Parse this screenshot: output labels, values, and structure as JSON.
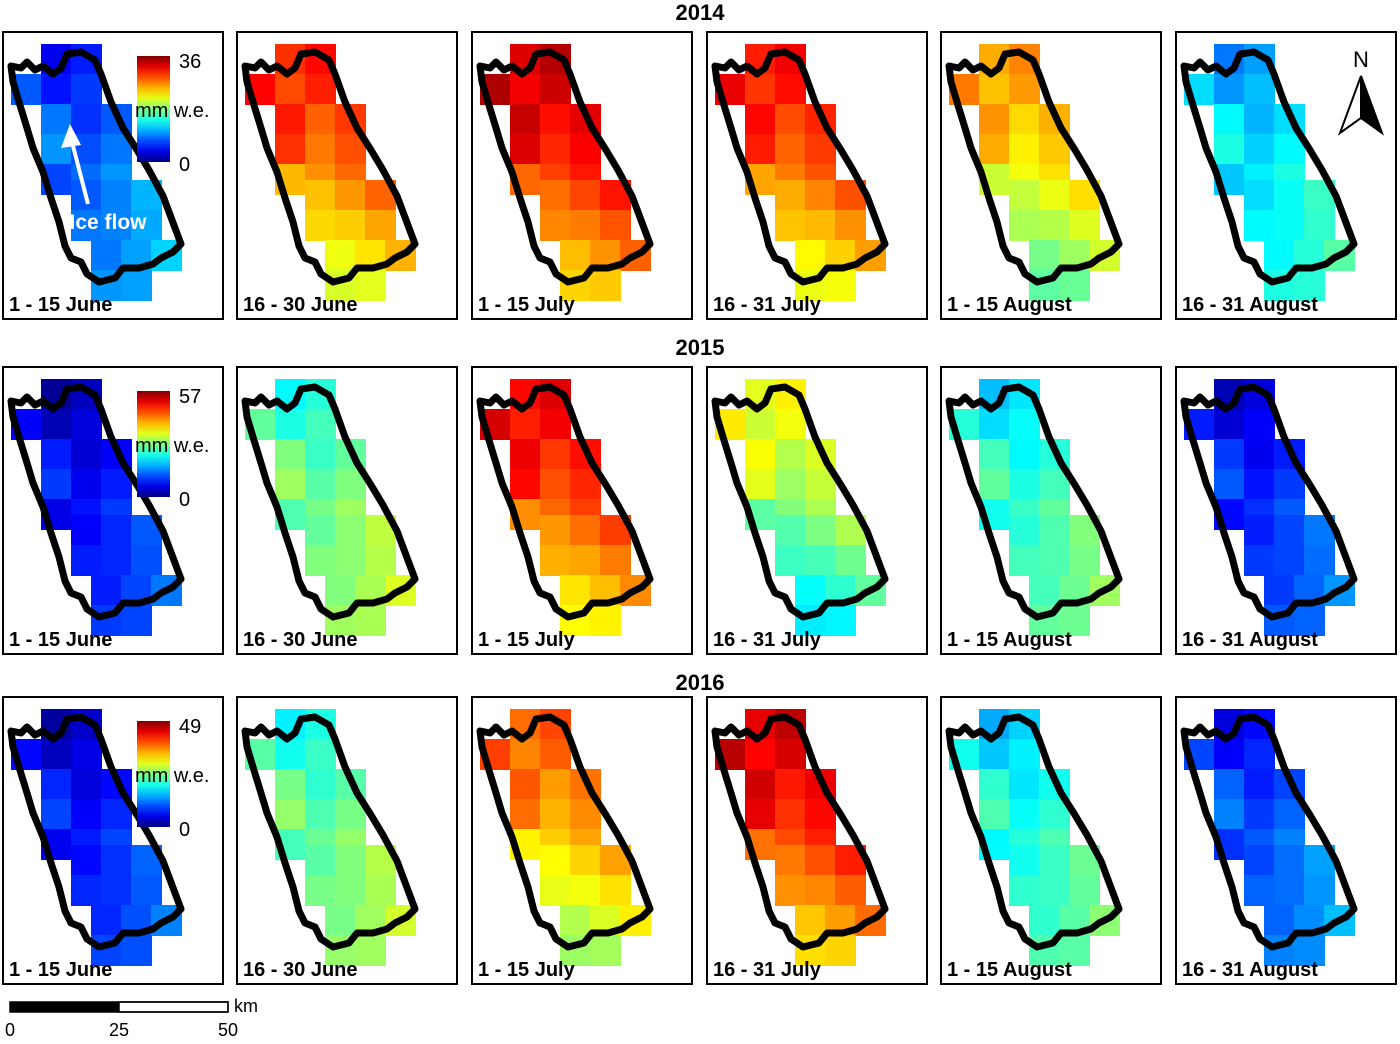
{
  "years": [
    {
      "year": "2014",
      "legend": {
        "max": "36",
        "min": "0",
        "unit": "mm w.e."
      },
      "panels": [
        {
          "label": "1 - 15 June",
          "level": 0.22
        },
        {
          "label": "16 - 30 June",
          "level": 0.78
        },
        {
          "label": "1 - 15 July",
          "level": 0.86
        },
        {
          "label": "16 - 31 July",
          "level": 0.8
        },
        {
          "label": "1 - 15 August",
          "level": 0.66
        },
        {
          "label": "16 - 31 August",
          "level": 0.35
        }
      ]
    },
    {
      "year": "2015",
      "legend": {
        "max": "57",
        "min": "0",
        "unit": "mm w.e."
      },
      "panels": [
        {
          "label": "1 - 15 June",
          "level": 0.13
        },
        {
          "label": "16 - 30 June",
          "level": 0.48
        },
        {
          "label": "1 - 15 July",
          "level": 0.82
        },
        {
          "label": "16 - 31 July",
          "level": 0.55
        },
        {
          "label": "1 - 15 August",
          "level": 0.42
        },
        {
          "label": "16 - 31 August",
          "level": 0.16
        }
      ]
    },
    {
      "year": "2016",
      "legend": {
        "max": "49",
        "min": "0",
        "unit": "mm w.e."
      },
      "panels": [
        {
          "label": "1 - 15 June",
          "level": 0.14
        },
        {
          "label": "16 - 30 June",
          "level": 0.47
        },
        {
          "label": "1 - 15 July",
          "level": 0.72
        },
        {
          "label": "16 - 31 July",
          "level": 0.85
        },
        {
          "label": "1 - 15 August",
          "level": 0.4
        },
        {
          "label": "16 - 31 August",
          "level": 0.2
        }
      ]
    }
  ],
  "annotation": "Ice flow",
  "north_label": "N",
  "scalebar": {
    "ticks": [
      "0",
      "25",
      "50"
    ],
    "unit": "km"
  }
}
